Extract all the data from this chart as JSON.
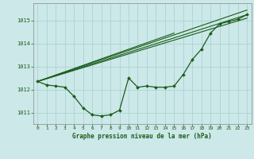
{
  "title": "Graphe pression niveau de la mer (hPa)",
  "bg_color": "#cce8e8",
  "grid_color": "#aad4d4",
  "line_color": "#1a5c1a",
  "xlim": [
    -0.5,
    23.5
  ],
  "ylim": [
    1010.5,
    1015.75
  ],
  "yticks": [
    1011,
    1012,
    1013,
    1014,
    1015
  ],
  "xticks": [
    0,
    1,
    2,
    3,
    4,
    5,
    6,
    7,
    8,
    9,
    10,
    11,
    12,
    13,
    14,
    15,
    16,
    17,
    18,
    19,
    20,
    21,
    22,
    23
  ],
  "series_main_x": [
    0,
    1,
    2,
    3,
    4,
    5,
    6,
    7,
    8,
    9,
    10,
    11,
    12,
    13,
    14,
    15,
    16,
    17,
    18,
    19,
    20,
    21,
    22,
    23
  ],
  "series_main_y": [
    1012.35,
    1012.2,
    1012.15,
    1012.1,
    1011.7,
    1011.2,
    1010.9,
    1010.85,
    1010.9,
    1011.1,
    1012.5,
    1012.1,
    1012.15,
    1012.1,
    1012.1,
    1012.15,
    1012.65,
    1013.3,
    1013.75,
    1014.45,
    1014.85,
    1014.95,
    1015.05,
    1015.25
  ],
  "line1_x": [
    0,
    23
  ],
  "line1_y": [
    1012.35,
    1015.1
  ],
  "line2_x": [
    0,
    23
  ],
  "line2_y": [
    1012.35,
    1015.25
  ],
  "line3_x": [
    0,
    23
  ],
  "line3_y": [
    1012.35,
    1015.45
  ],
  "line4_x": [
    0,
    15
  ],
  "line4_y": [
    1012.35,
    1014.45
  ]
}
